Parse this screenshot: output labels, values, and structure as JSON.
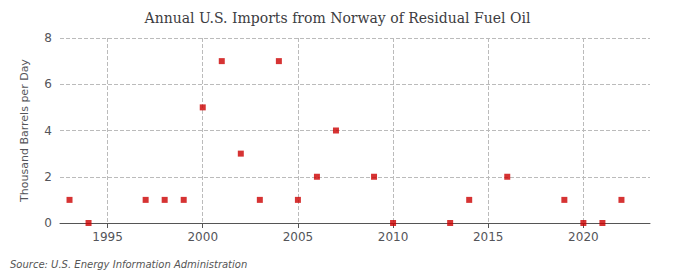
{
  "chart_data": {
    "type": "scatter",
    "title": "Annual U.S. Imports from Norway of Residual Fuel Oil",
    "ylabel": "Thousand Barrels per Day",
    "annotation": "Source: U.S. Energy Information Administration",
    "color": "#cc0000",
    "marker": "square",
    "grid": true,
    "x": [
      1993,
      1994,
      1997,
      1998,
      1999,
      2000,
      2001,
      2002,
      2003,
      2004,
      2005,
      2006,
      2007,
      2009,
      2010,
      2013,
      2014,
      2016,
      2019,
      2020,
      2021,
      2022
    ],
    "values": [
      1,
      0,
      1,
      1,
      1,
      5,
      7,
      3,
      1,
      7,
      1,
      2,
      4,
      2,
      0,
      0,
      1,
      2,
      1,
      0,
      0,
      1
    ],
    "xlim": [
      1992.5,
      2023.5
    ],
    "xticks": [
      1995,
      2000,
      2005,
      2010,
      2015,
      2020
    ],
    "ylim": [
      0,
      8
    ],
    "yticks": [
      0,
      2,
      4,
      6,
      8
    ]
  }
}
